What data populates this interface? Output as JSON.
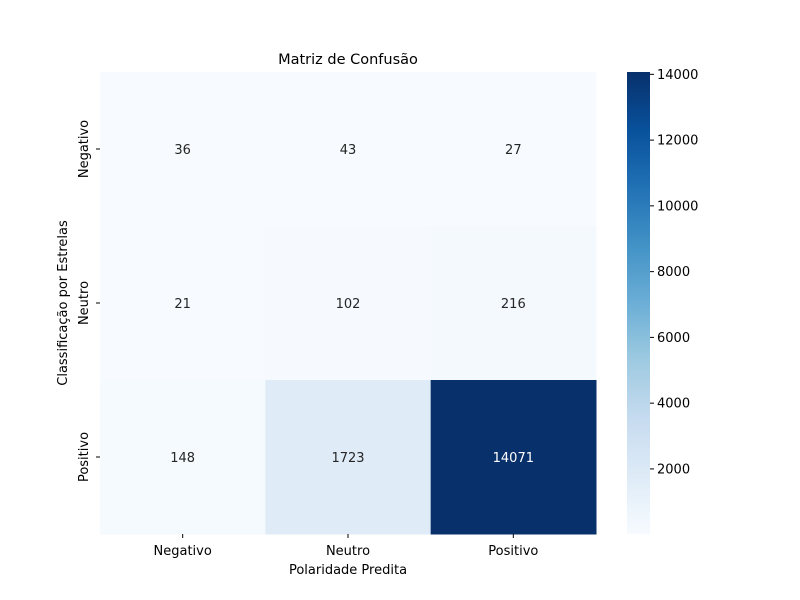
{
  "chart_data": {
    "type": "heatmap",
    "title": "Matriz de Confusão",
    "xlabel": "Polaridade Predita",
    "ylabel": "Classificação por Estrelas",
    "x_categories": [
      "Negativo",
      "Neutro",
      "Positivo"
    ],
    "y_categories": [
      "Negativo",
      "Neutro",
      "Positivo"
    ],
    "values": [
      [
        36,
        43,
        27
      ],
      [
        21,
        102,
        216
      ],
      [
        148,
        1723,
        14071
      ]
    ],
    "colormap": "Blues",
    "colorbar": {
      "min": 21,
      "max": 14071,
      "ticks": [
        2000,
        4000,
        6000,
        8000,
        10000,
        12000,
        14000
      ]
    },
    "colors": {
      "low": "#f7fbff",
      "high": "#08306b"
    }
  }
}
